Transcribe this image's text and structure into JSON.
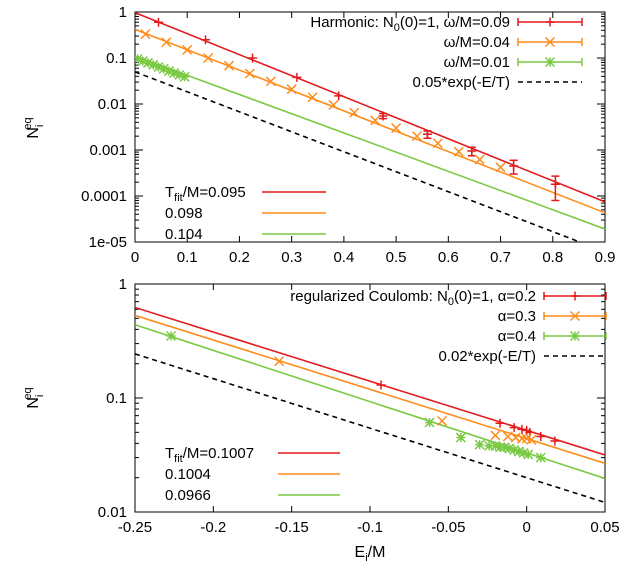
{
  "chart_data": [
    {
      "type": "scatter",
      "y_scale": "log",
      "xlim": [
        0,
        0.9
      ],
      "ylim": [
        1e-05,
        1
      ],
      "x_ticks": [
        0,
        0.1,
        0.2,
        0.3,
        0.4,
        0.5,
        0.6,
        0.7,
        0.8,
        0.9
      ],
      "x_tick_labels": [
        "0",
        "0.1",
        "0.2",
        "0.3",
        "0.4",
        "0.5",
        "0.6",
        "0.7",
        "0.8",
        "0.9"
      ],
      "y_ticks": [
        1,
        0.1,
        0.01,
        0.001,
        0.0001,
        1e-05
      ],
      "y_tick_labels": [
        "1",
        "0.1",
        "0.01",
        "0.001",
        "0.0001",
        "1e-05"
      ],
      "ylabel": "N",
      "ylabel_sub": "i",
      "ylabel_sup": "eq",
      "legend_position": "top-right",
      "series": [
        {
          "name_parts": [
            "Harmonic: N",
            "0",
            "(0)=1, ω/M=0.09"
          ],
          "color": "#e41a1c",
          "marker": "plus",
          "error_bars": true,
          "x": [
            0.045,
            0.135,
            0.225,
            0.31,
            0.39,
            0.475,
            0.56,
            0.645,
            0.725,
            0.805
          ],
          "y": [
            0.6,
            0.25,
            0.1,
            0.038,
            0.015,
            0.0055,
            0.0022,
            0.00095,
            0.00045,
            0.00018
          ],
          "err_lo": [
            0,
            0,
            0,
            0,
            0,
            0.0007,
            0.0004,
            0.0002,
            0.00015,
            0.0001
          ],
          "err_hi": [
            0,
            0,
            0,
            0,
            0,
            0.0007,
            0.0004,
            0.0002,
            0.00015,
            9e-05
          ]
        },
        {
          "name_parts": [
            "ω/M=0.04"
          ],
          "color": "#ff8c1a",
          "marker": "cross",
          "x": [
            0.02,
            0.06,
            0.1,
            0.14,
            0.18,
            0.22,
            0.26,
            0.3,
            0.34,
            0.38,
            0.42,
            0.46,
            0.5,
            0.54,
            0.58,
            0.62,
            0.66,
            0.7
          ],
          "y": [
            0.33,
            0.22,
            0.15,
            0.1,
            0.068,
            0.046,
            0.031,
            0.021,
            0.014,
            0.0095,
            0.0065,
            0.0044,
            0.003,
            0.002,
            0.0014,
            0.00092,
            0.00062,
            0.00042
          ]
        },
        {
          "name_parts": [
            "ω/M=0.01"
          ],
          "color": "#7ac943",
          "marker": "star",
          "x": [
            0.005,
            0.015,
            0.025,
            0.035,
            0.045,
            0.055,
            0.065,
            0.075,
            0.085,
            0.095
          ],
          "y": [
            0.095,
            0.086,
            0.078,
            0.071,
            0.064,
            0.058,
            0.052,
            0.047,
            0.043,
            0.039
          ]
        }
      ],
      "fit_lines": [
        {
          "legend_parts": [
            "T",
            "fit",
            "/M=0.095"
          ],
          "color": "#e41a1c",
          "T_over_M": 0.095,
          "x_range": [
            0,
            0.9
          ],
          "y_at_x0": 0.97
        },
        {
          "legend_parts": [
            "0.098"
          ],
          "color": "#ff8c1a",
          "T_over_M": 0.098,
          "x_range": [
            0,
            0.9
          ],
          "y_at_x0": 0.42
        },
        {
          "legend_parts": [
            "0.104"
          ],
          "color": "#7ac943",
          "T_over_M": 0.104,
          "x_range": [
            0,
            0.9
          ],
          "y_at_x0": 0.11
        }
      ],
      "reference_line": {
        "label": "0.05*exp(-E/T)",
        "color": "#000000",
        "dash": true,
        "coefficient": 0.05,
        "T_over_M": 0.1,
        "x_range": [
          0,
          0.9
        ]
      }
    },
    {
      "type": "scatter",
      "y_scale": "log",
      "xlim": [
        -0.25,
        0.05
      ],
      "ylim": [
        0.01,
        1
      ],
      "x_ticks": [
        -0.25,
        -0.2,
        -0.15,
        -0.1,
        -0.05,
        0,
        0.05
      ],
      "x_tick_labels": [
        "-0.25",
        "-0.2",
        "-0.15",
        "-0.1",
        "-0.05",
        "0",
        "0.05"
      ],
      "y_ticks": [
        1,
        0.1,
        0.01
      ],
      "y_tick_labels": [
        "1",
        "0.1",
        "0.01"
      ],
      "xlabel": "E",
      "xlabel_sub": "i",
      "xlabel_suffix": "/M",
      "ylabel": "N",
      "ylabel_sub": "i",
      "ylabel_sup": "eq",
      "legend_position": "top-right",
      "series": [
        {
          "name_parts": [
            "regularized Coulomb: N",
            "0",
            "(0)=1, α=0.2"
          ],
          "color": "#e41a1c",
          "marker": "plus",
          "x": [
            -0.093,
            -0.017,
            -0.008,
            -0.003,
            0.0,
            0.002,
            0.009,
            0.018
          ],
          "y": [
            0.13,
            0.06,
            0.055,
            0.053,
            0.052,
            0.05,
            0.046,
            0.042
          ]
        },
        {
          "name_parts": [
            "α=0.3"
          ],
          "color": "#ff8c1a",
          "marker": "cross",
          "x": [
            -0.158,
            -0.054,
            -0.02,
            -0.012,
            -0.007,
            -0.003,
            0.0,
            0.003
          ],
          "y": [
            0.21,
            0.063,
            0.047,
            0.046,
            0.045,
            0.044,
            0.044,
            0.043
          ]
        },
        {
          "name_parts": [
            "α=0.4"
          ],
          "color": "#7ac943",
          "marker": "star",
          "x": [
            -0.227,
            -0.062,
            -0.042,
            -0.03,
            -0.024,
            -0.02,
            -0.017,
            -0.014,
            -0.011,
            -0.008,
            -0.005,
            -0.002,
            0.001,
            0.009
          ],
          "y": [
            0.35,
            0.061,
            0.045,
            0.039,
            0.038,
            0.038,
            0.037,
            0.037,
            0.036,
            0.035,
            0.034,
            0.033,
            0.032,
            0.03
          ]
        }
      ],
      "fit_lines": [
        {
          "legend_parts": [
            "T",
            "fit",
            "/M=0.1007"
          ],
          "color": "#e41a1c",
          "T_over_M": 0.1007,
          "x_range": [
            -0.25,
            0.05
          ],
          "y_at_x0": 0.052
        },
        {
          "legend_parts": [
            "0.1004"
          ],
          "color": "#ff8c1a",
          "T_over_M": 0.1004,
          "x_range": [
            -0.25,
            0.05
          ],
          "y_at_x0": 0.044
        },
        {
          "legend_parts": [
            "0.0966"
          ],
          "color": "#7ac943",
          "T_over_M": 0.0966,
          "x_range": [
            -0.25,
            0.05
          ],
          "y_at_x0": 0.033
        }
      ],
      "reference_line": {
        "label": "0.02*exp(-E/T)",
        "color": "#000000",
        "dash": true,
        "coefficient": 0.02,
        "T_over_M": 0.1,
        "x_range": [
          -0.25,
          0.05
        ]
      }
    }
  ]
}
